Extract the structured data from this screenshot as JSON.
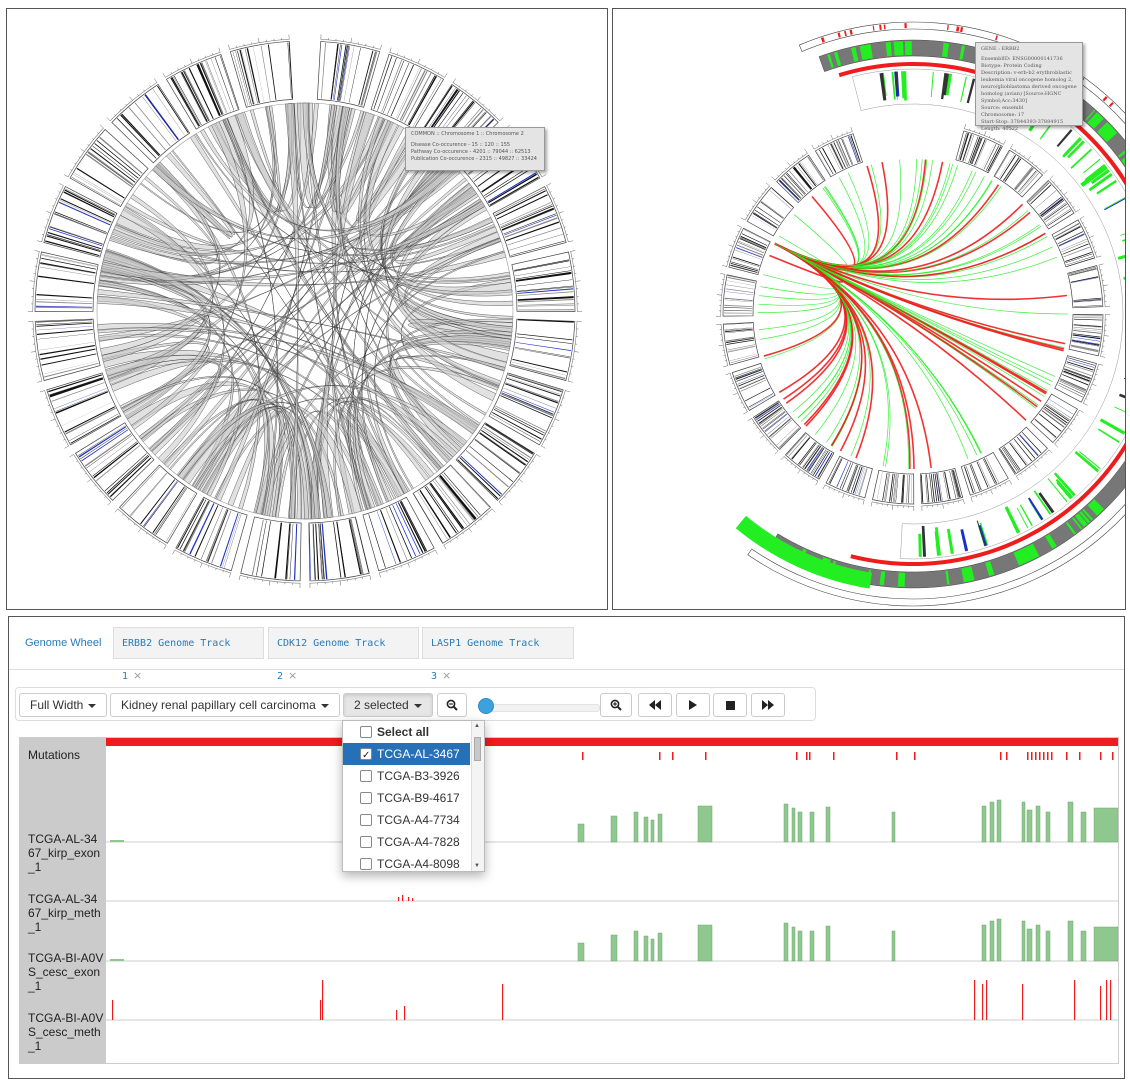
{
  "wheel_left": {
    "tooltip_lines": [
      "COMMON :: Chromosome 1 :: Chromosome 2",
      "",
      "Disease Co-occurence - 15 :: 120 :: 155",
      "Pathway Co-occurence - 4201 :: 79044 :: 62513",
      "Publication Co-occurence - 2315 :: 49827 :: 33424"
    ]
  },
  "wheel_right": {
    "tooltip_lines": [
      "GENE : ERBB2",
      "",
      "EnsemblID: ENSG00000141736",
      "Biotype: Protein Coding",
      "Description: v-erb-b2 erythroblastic",
      "leukemia viral oncogene homolog 2,",
      "neuro/glioblastoma derived oncogene",
      "homolog (avian) [Source:HGNC",
      "Symbol;Acc:3430]",
      "Source: ensembl",
      "Chromosome: 17",
      "Start-Stop: 37844393-37884915",
      "Length: 40522"
    ]
  },
  "tabs": [
    {
      "label": "Genome Wheel",
      "closable": false
    },
    {
      "label": "ERBB2 Genome Track 1",
      "closable": true
    },
    {
      "label": "CDK12 Genome Track 2",
      "closable": true
    },
    {
      "label": "LASP1 Genome Track 3",
      "closable": true
    }
  ],
  "close_glyph": "×",
  "toolbar": {
    "width_label": "Full Width",
    "disease_label": "Kidney renal papillary cell carcinoma",
    "samples_label": "2 selected"
  },
  "dropdown": {
    "items": [
      {
        "label": "Select all",
        "checked": false,
        "bold": true,
        "highlighted": false
      },
      {
        "label": "TCGA-AL-3467",
        "checked": true,
        "bold": false,
        "highlighted": true
      },
      {
        "label": "TCGA-B3-3926",
        "checked": false,
        "bold": false,
        "highlighted": false
      },
      {
        "label": "TCGA-B9-4617",
        "checked": false,
        "bold": false,
        "highlighted": false
      },
      {
        "label": "TCGA-A4-7734",
        "checked": false,
        "bold": false,
        "highlighted": false
      },
      {
        "label": "TCGA-A4-7828",
        "checked": false,
        "bold": false,
        "highlighted": false
      },
      {
        "label": "TCGA-A4-8098",
        "checked": false,
        "bold": false,
        "highlighted": false
      }
    ]
  },
  "track_labels": [
    "Mutations",
    "TCGA-AL-3467_kirp_exon_1",
    "TCGA-AL-3467_kirp_meth_1",
    "TCGA-BI-A0VS_cesc_exon_1",
    "TCGA-BI-A0VS_cesc_meth_1"
  ],
  "colors": {
    "mutation": "#ee1c1c",
    "exon": "#8fc88f",
    "chord_gray": "#c8c8c8",
    "gene_green": "#22ee22",
    "band_blue": "#1a2fcc"
  }
}
